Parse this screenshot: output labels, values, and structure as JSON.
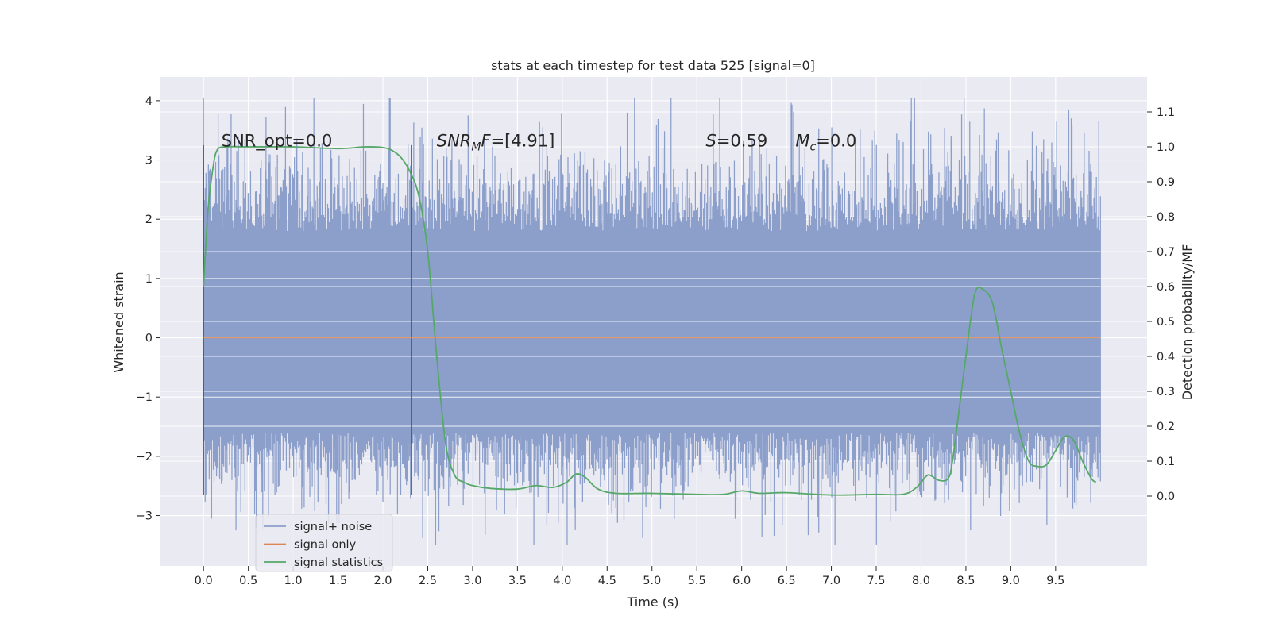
{
  "chart_data": {
    "type": "line",
    "title": "stats at each timestep for test data 525 [signal=0]",
    "xlabel": "Time (s)",
    "ylabel_left": "Whitened strain",
    "ylabel_right": "Detection probability/MF",
    "xlim": [
      -0.48,
      10.52
    ],
    "ylim_left": [
      -3.85,
      4.4
    ],
    "ylim_right": [
      -0.2,
      1.2
    ],
    "x_ticks": [
      "0.0",
      "0.5",
      "1.0",
      "1.5",
      "2.0",
      "2.5",
      "3.0",
      "3.5",
      "4.0",
      "4.5",
      "5.0",
      "5.5",
      "6.0",
      "6.5",
      "7.0",
      "7.5",
      "8.0",
      "8.5",
      "9.0",
      "9.5"
    ],
    "y_ticks_left": [
      "−3",
      "−2",
      "−1",
      "0",
      "1",
      "2",
      "3",
      "4"
    ],
    "y_ticks_right": [
      "0.0",
      "0.1",
      "0.2",
      "0.3",
      "0.4",
      "0.5",
      "0.6",
      "0.7",
      "0.8",
      "0.9",
      "1.0",
      "1.1"
    ],
    "grid": true,
    "background": "#EAEAF2",
    "annotations": [
      {
        "id": "snr-opt",
        "text": "SNR_opt=0.0",
        "x": 0.2,
        "y": 3.2
      },
      {
        "id": "snr-mf",
        "text": "SNR_MF=[4.91]",
        "x": 2.6,
        "y": 3.2
      },
      {
        "id": "s-value",
        "text": "S=0.59",
        "x": 5.6,
        "y": 3.2
      },
      {
        "id": "mc-value",
        "text": "M_c=0.0",
        "x": 6.6,
        "y": 3.2
      }
    ],
    "vertical_markers": [
      {
        "x": 0.0,
        "y_range": [
          -2.65,
          3.25
        ]
      },
      {
        "x": 2.32,
        "y_range": [
          -2.65,
          3.25
        ]
      }
    ],
    "series": [
      {
        "name": "signal+ noise",
        "axis": "left",
        "color": "#8C9FCB",
        "x_range": [
          0.0,
          10.0
        ],
        "envelope_range": [
          -1.6,
          1.8
        ],
        "peak_range": [
          -3.5,
          4.05
        ],
        "notable_peaks": [
          {
            "x": 7.93,
            "y": 4.05
          },
          {
            "x": 2.95,
            "y": 3.75
          },
          {
            "x": 7.5,
            "y": -3.5
          }
        ]
      },
      {
        "name": "signal only",
        "axis": "left",
        "color": "#DD8452",
        "x": [
          0.0,
          10.0
        ],
        "values": [
          0.0,
          0.0
        ]
      },
      {
        "name": "signal statistics",
        "axis": "right",
        "color": "#55A868",
        "x": [
          0.0,
          0.05,
          0.1,
          0.15,
          0.25,
          0.5,
          1.0,
          1.5,
          1.8,
          2.0,
          2.1,
          2.2,
          2.3,
          2.4,
          2.5,
          2.6,
          2.7,
          2.8,
          2.9,
          3.0,
          3.2,
          3.5,
          3.7,
          3.9,
          4.05,
          4.15,
          4.25,
          4.4,
          4.6,
          5.0,
          5.5,
          5.8,
          6.0,
          6.2,
          6.5,
          7.0,
          7.5,
          7.8,
          7.95,
          8.05,
          8.1,
          8.2,
          8.3,
          8.35,
          8.45,
          8.5,
          8.6,
          8.7,
          8.8,
          8.9,
          9.0,
          9.1,
          9.2,
          9.3,
          9.4,
          9.5,
          9.6,
          9.7,
          9.8,
          9.9,
          9.95
        ],
        "values": [
          0.6,
          0.82,
          0.93,
          0.99,
          1.0,
          1.0,
          1.0,
          0.995,
          1.0,
          0.998,
          0.99,
          0.97,
          0.93,
          0.86,
          0.7,
          0.4,
          0.15,
          0.06,
          0.04,
          0.03,
          0.022,
          0.02,
          0.03,
          0.025,
          0.04,
          0.063,
          0.055,
          0.02,
          0.008,
          0.008,
          0.005,
          0.005,
          0.015,
          0.008,
          0.01,
          0.003,
          0.005,
          0.005,
          0.025,
          0.055,
          0.06,
          0.045,
          0.05,
          0.1,
          0.3,
          0.4,
          0.58,
          0.59,
          0.55,
          0.42,
          0.3,
          0.18,
          0.1,
          0.085,
          0.09,
          0.13,
          0.17,
          0.16,
          0.1,
          0.05,
          0.04
        ]
      }
    ],
    "legend": {
      "placement": "lower-left",
      "entries": [
        "signal+ noise",
        "signal only",
        "signal statistics"
      ]
    }
  }
}
